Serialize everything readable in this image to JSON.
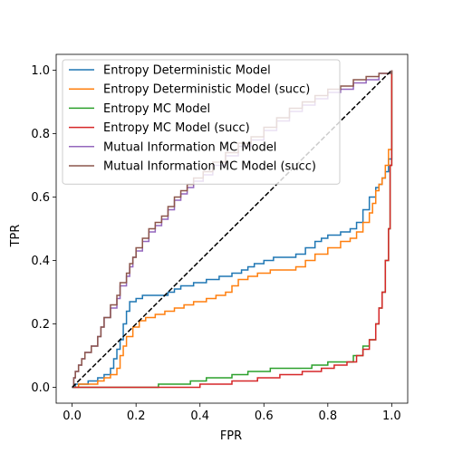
{
  "chart_data": {
    "type": "line",
    "title": "",
    "xlabel": "FPR",
    "ylabel": "TPR",
    "xlim": [
      -0.05,
      1.05
    ],
    "ylim": [
      -0.05,
      1.05
    ],
    "xticks": [
      "0.0",
      "0.2",
      "0.4",
      "0.6",
      "0.8",
      "1.0"
    ],
    "yticks": [
      "0.0",
      "0.2",
      "0.4",
      "0.6",
      "0.8",
      "1.0"
    ],
    "legend_position": "top-left",
    "grid": false,
    "diagonal": {
      "style": "dashed",
      "color": "#000000",
      "points": [
        [
          0,
          0
        ],
        [
          1,
          1
        ]
      ]
    },
    "series": [
      {
        "name": "Entropy Deterministic Model",
        "color": "#1f77b4",
        "points": [
          [
            0,
            0
          ],
          [
            0.01,
            0.01
          ],
          [
            0.03,
            0.01
          ],
          [
            0.05,
            0.02
          ],
          [
            0.08,
            0.03
          ],
          [
            0.1,
            0.04
          ],
          [
            0.12,
            0.06
          ],
          [
            0.13,
            0.09
          ],
          [
            0.14,
            0.12
          ],
          [
            0.15,
            0.15
          ],
          [
            0.16,
            0.2
          ],
          [
            0.17,
            0.24
          ],
          [
            0.18,
            0.27
          ],
          [
            0.2,
            0.28
          ],
          [
            0.22,
            0.29
          ],
          [
            0.26,
            0.29
          ],
          [
            0.3,
            0.3
          ],
          [
            0.32,
            0.31
          ],
          [
            0.34,
            0.32
          ],
          [
            0.38,
            0.33
          ],
          [
            0.42,
            0.34
          ],
          [
            0.46,
            0.35
          ],
          [
            0.5,
            0.36
          ],
          [
            0.53,
            0.37
          ],
          [
            0.55,
            0.38
          ],
          [
            0.57,
            0.39
          ],
          [
            0.6,
            0.4
          ],
          [
            0.63,
            0.41
          ],
          [
            0.67,
            0.41
          ],
          [
            0.7,
            0.42
          ],
          [
            0.73,
            0.44
          ],
          [
            0.76,
            0.46
          ],
          [
            0.78,
            0.47
          ],
          [
            0.8,
            0.48
          ],
          [
            0.84,
            0.49
          ],
          [
            0.87,
            0.5
          ],
          [
            0.89,
            0.52
          ],
          [
            0.91,
            0.56
          ],
          [
            0.93,
            0.6
          ],
          [
            0.95,
            0.63
          ],
          [
            0.96,
            0.64
          ],
          [
            0.97,
            0.66
          ],
          [
            0.98,
            0.68
          ],
          [
            0.99,
            0.72
          ],
          [
            1,
            0.78
          ],
          [
            1,
            1
          ]
        ]
      },
      {
        "name": "Entropy Deterministic Model (succ)",
        "color": "#ff7f0e",
        "points": [
          [
            0,
            0
          ],
          [
            0.02,
            0.01
          ],
          [
            0.05,
            0.01
          ],
          [
            0.08,
            0.02
          ],
          [
            0.1,
            0.03
          ],
          [
            0.12,
            0.04
          ],
          [
            0.14,
            0.06
          ],
          [
            0.15,
            0.1
          ],
          [
            0.16,
            0.13
          ],
          [
            0.17,
            0.16
          ],
          [
            0.19,
            0.19
          ],
          [
            0.21,
            0.21
          ],
          [
            0.23,
            0.22
          ],
          [
            0.26,
            0.23
          ],
          [
            0.29,
            0.24
          ],
          [
            0.32,
            0.25
          ],
          [
            0.35,
            0.26
          ],
          [
            0.38,
            0.27
          ],
          [
            0.42,
            0.28
          ],
          [
            0.45,
            0.29
          ],
          [
            0.48,
            0.3
          ],
          [
            0.5,
            0.32
          ],
          [
            0.52,
            0.34
          ],
          [
            0.55,
            0.35
          ],
          [
            0.58,
            0.36
          ],
          [
            0.62,
            0.37
          ],
          [
            0.66,
            0.37
          ],
          [
            0.7,
            0.38
          ],
          [
            0.73,
            0.4
          ],
          [
            0.76,
            0.42
          ],
          [
            0.8,
            0.44
          ],
          [
            0.84,
            0.46
          ],
          [
            0.87,
            0.47
          ],
          [
            0.89,
            0.49
          ],
          [
            0.91,
            0.52
          ],
          [
            0.93,
            0.55
          ],
          [
            0.94,
            0.58
          ],
          [
            0.95,
            0.62
          ],
          [
            0.96,
            0.64
          ],
          [
            0.97,
            0.66
          ],
          [
            0.98,
            0.7
          ],
          [
            0.99,
            0.75
          ],
          [
            1,
            0.82
          ],
          [
            1,
            1
          ]
        ]
      },
      {
        "name": "Entropy MC Model",
        "color": "#2ca02c",
        "points": [
          [
            0,
            0
          ],
          [
            0.1,
            0
          ],
          [
            0.2,
            0
          ],
          [
            0.27,
            0.01
          ],
          [
            0.33,
            0.01
          ],
          [
            0.37,
            0.02
          ],
          [
            0.42,
            0.03
          ],
          [
            0.5,
            0.04
          ],
          [
            0.55,
            0.05
          ],
          [
            0.62,
            0.06
          ],
          [
            0.7,
            0.06
          ],
          [
            0.75,
            0.07
          ],
          [
            0.8,
            0.08
          ],
          [
            0.85,
            0.08
          ],
          [
            0.88,
            0.1
          ],
          [
            0.91,
            0.13
          ],
          [
            0.93,
            0.15
          ],
          [
            0.95,
            0.2
          ],
          [
            0.96,
            0.25
          ],
          [
            0.97,
            0.3
          ],
          [
            0.98,
            0.4
          ],
          [
            0.99,
            0.5
          ],
          [
            0.995,
            0.7
          ],
          [
            1,
            1
          ]
        ]
      },
      {
        "name": "Entropy MC Model (succ)",
        "color": "#d62728",
        "points": [
          [
            0,
            0
          ],
          [
            0.15,
            0
          ],
          [
            0.3,
            0
          ],
          [
            0.4,
            0.01
          ],
          [
            0.5,
            0.02
          ],
          [
            0.58,
            0.03
          ],
          [
            0.65,
            0.04
          ],
          [
            0.72,
            0.05
          ],
          [
            0.78,
            0.06
          ],
          [
            0.82,
            0.07
          ],
          [
            0.86,
            0.08
          ],
          [
            0.89,
            0.1
          ],
          [
            0.91,
            0.12
          ],
          [
            0.93,
            0.15
          ],
          [
            0.95,
            0.2
          ],
          [
            0.96,
            0.25
          ],
          [
            0.97,
            0.3
          ],
          [
            0.98,
            0.4
          ],
          [
            0.99,
            0.5
          ],
          [
            0.995,
            0.7
          ],
          [
            1,
            1
          ]
        ]
      },
      {
        "name": "Mutual Information MC Model",
        "color": "#9467bd",
        "points": [
          [
            0,
            0
          ],
          [
            0.005,
            0.03
          ],
          [
            0.01,
            0.05
          ],
          [
            0.02,
            0.07
          ],
          [
            0.03,
            0.09
          ],
          [
            0.04,
            0.11
          ],
          [
            0.06,
            0.13
          ],
          [
            0.08,
            0.16
          ],
          [
            0.09,
            0.19
          ],
          [
            0.1,
            0.22
          ],
          [
            0.12,
            0.25
          ],
          [
            0.14,
            0.28
          ],
          [
            0.15,
            0.32
          ],
          [
            0.17,
            0.35
          ],
          [
            0.18,
            0.38
          ],
          [
            0.19,
            0.41
          ],
          [
            0.2,
            0.43
          ],
          [
            0.22,
            0.46
          ],
          [
            0.24,
            0.49
          ],
          [
            0.26,
            0.51
          ],
          [
            0.28,
            0.53
          ],
          [
            0.3,
            0.56
          ],
          [
            0.32,
            0.59
          ],
          [
            0.34,
            0.61
          ],
          [
            0.36,
            0.63
          ],
          [
            0.38,
            0.65
          ],
          [
            0.41,
            0.67
          ],
          [
            0.44,
            0.7
          ],
          [
            0.48,
            0.73
          ],
          [
            0.52,
            0.76
          ],
          [
            0.56,
            0.78
          ],
          [
            0.6,
            0.81
          ],
          [
            0.64,
            0.84
          ],
          [
            0.68,
            0.87
          ],
          [
            0.72,
            0.89
          ],
          [
            0.76,
            0.91
          ],
          [
            0.8,
            0.93
          ],
          [
            0.84,
            0.94
          ],
          [
            0.88,
            0.96
          ],
          [
            0.92,
            0.97
          ],
          [
            0.96,
            0.99
          ],
          [
            1,
            1
          ]
        ]
      },
      {
        "name": "Mutual Information MC Model (succ)",
        "color": "#8c564b",
        "points": [
          [
            0,
            0
          ],
          [
            0.005,
            0.03
          ],
          [
            0.01,
            0.05
          ],
          [
            0.02,
            0.07
          ],
          [
            0.03,
            0.09
          ],
          [
            0.04,
            0.11
          ],
          [
            0.06,
            0.13
          ],
          [
            0.08,
            0.16
          ],
          [
            0.09,
            0.19
          ],
          [
            0.1,
            0.22
          ],
          [
            0.12,
            0.26
          ],
          [
            0.14,
            0.29
          ],
          [
            0.15,
            0.33
          ],
          [
            0.17,
            0.36
          ],
          [
            0.18,
            0.39
          ],
          [
            0.19,
            0.41
          ],
          [
            0.2,
            0.44
          ],
          [
            0.22,
            0.47
          ],
          [
            0.24,
            0.5
          ],
          [
            0.26,
            0.52
          ],
          [
            0.28,
            0.54
          ],
          [
            0.3,
            0.57
          ],
          [
            0.32,
            0.6
          ],
          [
            0.34,
            0.62
          ],
          [
            0.36,
            0.64
          ],
          [
            0.38,
            0.66
          ],
          [
            0.41,
            0.68
          ],
          [
            0.44,
            0.71
          ],
          [
            0.48,
            0.74
          ],
          [
            0.52,
            0.77
          ],
          [
            0.56,
            0.79
          ],
          [
            0.6,
            0.82
          ],
          [
            0.64,
            0.85
          ],
          [
            0.68,
            0.88
          ],
          [
            0.72,
            0.9
          ],
          [
            0.76,
            0.92
          ],
          [
            0.8,
            0.94
          ],
          [
            0.84,
            0.95
          ],
          [
            0.88,
            0.97
          ],
          [
            0.92,
            0.98
          ],
          [
            0.96,
            0.99
          ],
          [
            1,
            1
          ]
        ]
      }
    ]
  }
}
